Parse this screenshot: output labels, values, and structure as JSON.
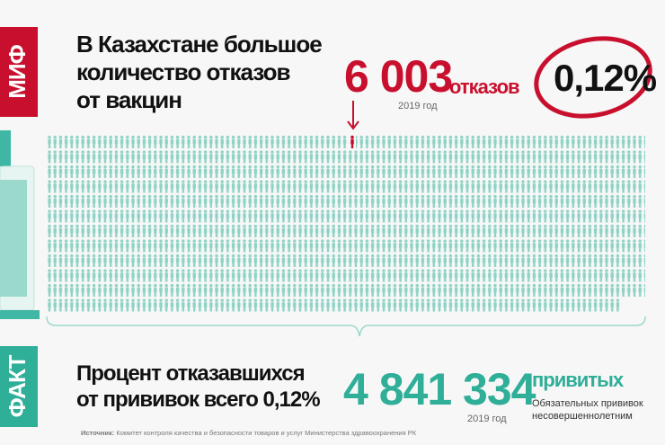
{
  "myth": {
    "tab": "МИФ",
    "lines": [
      "В Казахстане большое",
      "количество отказов",
      "от вакцин"
    ],
    "refusals": {
      "number": "6 003",
      "label": "отказов",
      "year": "2019 год"
    },
    "percent": "0,12%"
  },
  "fact": {
    "tab": "ФАКТ",
    "lines": [
      "Процент отказавшихся",
      "от прививок всего 0,12%"
    ],
    "vaccinated": {
      "number": "4 841 334",
      "label": "привитых",
      "year": "2019 год",
      "note": [
        "Обязательных прививок",
        "несовершеннолетним"
      ]
    }
  },
  "source": {
    "label": "Источник:",
    "text": "Комитет контроля качества и безопасности товаров и услуг Министерства здравоохранения РК"
  }
}
